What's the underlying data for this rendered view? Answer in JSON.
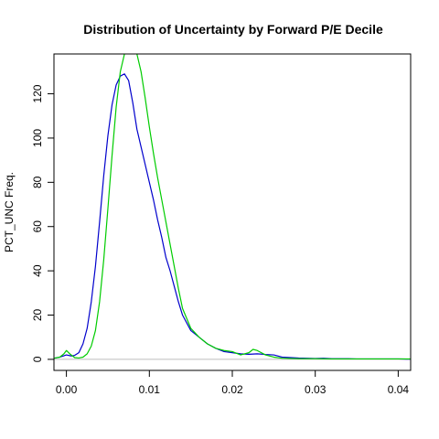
{
  "chart_data": {
    "type": "line",
    "title": "Distribution of Uncertainty by Forward P/E Decile",
    "xlabel": "",
    "ylabel": "PCT_UNC Freq.",
    "xlim": [
      -0.0015,
      0.0415
    ],
    "ylim": [
      -5,
      138
    ],
    "x_ticks": [
      0.0,
      0.01,
      0.02,
      0.03,
      0.04
    ],
    "x_tick_labels": [
      "0.00",
      "0.01",
      "0.02",
      "0.03",
      "0.04"
    ],
    "y_ticks": [
      0,
      20,
      40,
      60,
      80,
      100,
      120
    ],
    "y_tick_labels": [
      "0",
      "20",
      "40",
      "60",
      "80",
      "100",
      "120"
    ],
    "grid": false,
    "baseline": {
      "y": 0,
      "color": "#bebebe"
    },
    "series": [
      {
        "color": "#0000cc",
        "x": [
          -0.0015,
          -0.0008,
          -0.0004,
          0.0,
          0.0006,
          0.001,
          0.0015,
          0.002,
          0.0025,
          0.003,
          0.0035,
          0.004,
          0.0045,
          0.005,
          0.0055,
          0.006,
          0.0065,
          0.007,
          0.0075,
          0.008,
          0.0085,
          0.009,
          0.0095,
          0.01,
          0.0105,
          0.011,
          0.0115,
          0.012,
          0.0125,
          0.013,
          0.0135,
          0.014,
          0.015,
          0.016,
          0.017,
          0.018,
          0.019,
          0.02,
          0.021,
          0.022,
          0.023,
          0.024,
          0.025,
          0.026,
          0.027,
          0.028,
          0.029,
          0.03,
          0.031,
          0.032,
          0.033,
          0.034,
          0.035,
          0.036,
          0.037,
          0.038,
          0.039,
          0.04,
          0.041,
          0.0415
        ],
        "y": [
          0.5,
          1.0,
          1.5,
          2.0,
          1.5,
          1.8,
          3.0,
          7.0,
          14.0,
          26.0,
          42.0,
          62.0,
          83.0,
          101.0,
          115.0,
          124.0,
          128.0,
          129.0,
          126.0,
          116.0,
          104.0,
          96.0,
          88.0,
          80.0,
          72.0,
          63.0,
          55.0,
          46.0,
          40.0,
          33.0,
          26.0,
          20.0,
          13.0,
          10.0,
          7.0,
          5.0,
          3.5,
          3.0,
          2.5,
          2.3,
          2.5,
          2.2,
          2.0,
          1.0,
          0.8,
          0.6,
          0.5,
          0.4,
          0.5,
          0.3,
          0.3,
          0.3,
          0.2,
          0.2,
          0.2,
          0.2,
          0.2,
          0.2,
          0.1,
          0.1
        ]
      },
      {
        "color": "#00cc00",
        "x": [
          -0.0015,
          -0.0008,
          -0.0003,
          0.0,
          0.0004,
          0.001,
          0.0015,
          0.002,
          0.0025,
          0.003,
          0.0035,
          0.004,
          0.0045,
          0.005,
          0.0055,
          0.006,
          0.0065,
          0.007,
          0.0075,
          0.008,
          0.0085,
          0.009,
          0.0095,
          0.01,
          0.0105,
          0.011,
          0.0115,
          0.012,
          0.0125,
          0.013,
          0.0135,
          0.014,
          0.015,
          0.016,
          0.017,
          0.018,
          0.019,
          0.02,
          0.021,
          0.022,
          0.0225,
          0.023,
          0.024,
          0.025,
          0.026,
          0.027,
          0.028,
          0.029,
          0.03,
          0.032,
          0.034,
          0.036,
          0.038,
          0.04,
          0.0415
        ],
        "y": [
          0.5,
          1.0,
          2.5,
          4.0,
          2.5,
          0.8,
          0.6,
          1.0,
          2.5,
          6.0,
          13.0,
          26.0,
          45.0,
          68.0,
          92.0,
          114.0,
          130.0,
          138.0,
          140.0,
          140.0,
          138.0,
          130.0,
          118.0,
          105.0,
          93.0,
          82.0,
          72.0,
          62.0,
          52.0,
          42.0,
          32.0,
          23.0,
          14.0,
          10.0,
          7.0,
          5.0,
          4.0,
          3.5,
          2.0,
          3.0,
          4.5,
          4.0,
          2.0,
          1.0,
          0.5,
          0.4,
          0.3,
          0.3,
          0.3,
          0.2,
          0.2,
          0.2,
          0.2,
          0.2,
          0.2
        ]
      }
    ]
  }
}
